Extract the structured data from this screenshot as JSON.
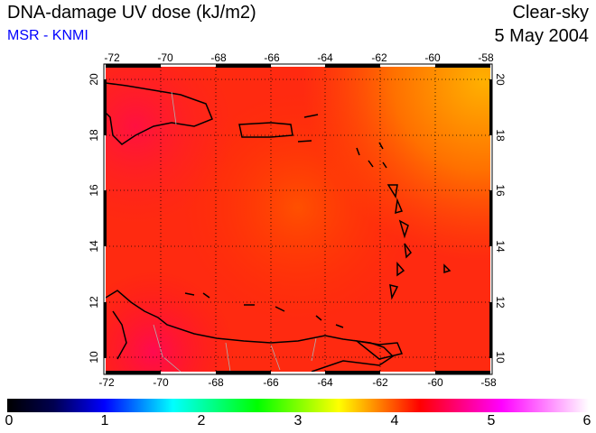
{
  "header": {
    "title": "DNA-damage UV dose (kJ/m2)",
    "source": "MSR - KNMI",
    "condition": "Clear-sky",
    "date": "5 May 2004"
  },
  "map": {
    "lon_labels": [
      "-72",
      "-70",
      "-68",
      "-66",
      "-64",
      "-62",
      "-60",
      "-58"
    ],
    "lat_labels": [
      "20",
      "18",
      "16",
      "14",
      "12",
      "10"
    ],
    "lon_range": [
      -72,
      -58
    ],
    "lat_range": [
      9.5,
      20.5
    ],
    "dominant_value_range_kJ_m2": [
      4.0,
      4.6
    ]
  },
  "colorbar": {
    "min": 0,
    "max": 6,
    "labels": [
      "0",
      "1",
      "2",
      "3",
      "4",
      "5",
      "6"
    ],
    "colors": [
      "#000000",
      "#0000ff",
      "#00ffff",
      "#00ff00",
      "#ffff00",
      "#ff0000",
      "#ff00ff",
      "#ffffff"
    ]
  }
}
